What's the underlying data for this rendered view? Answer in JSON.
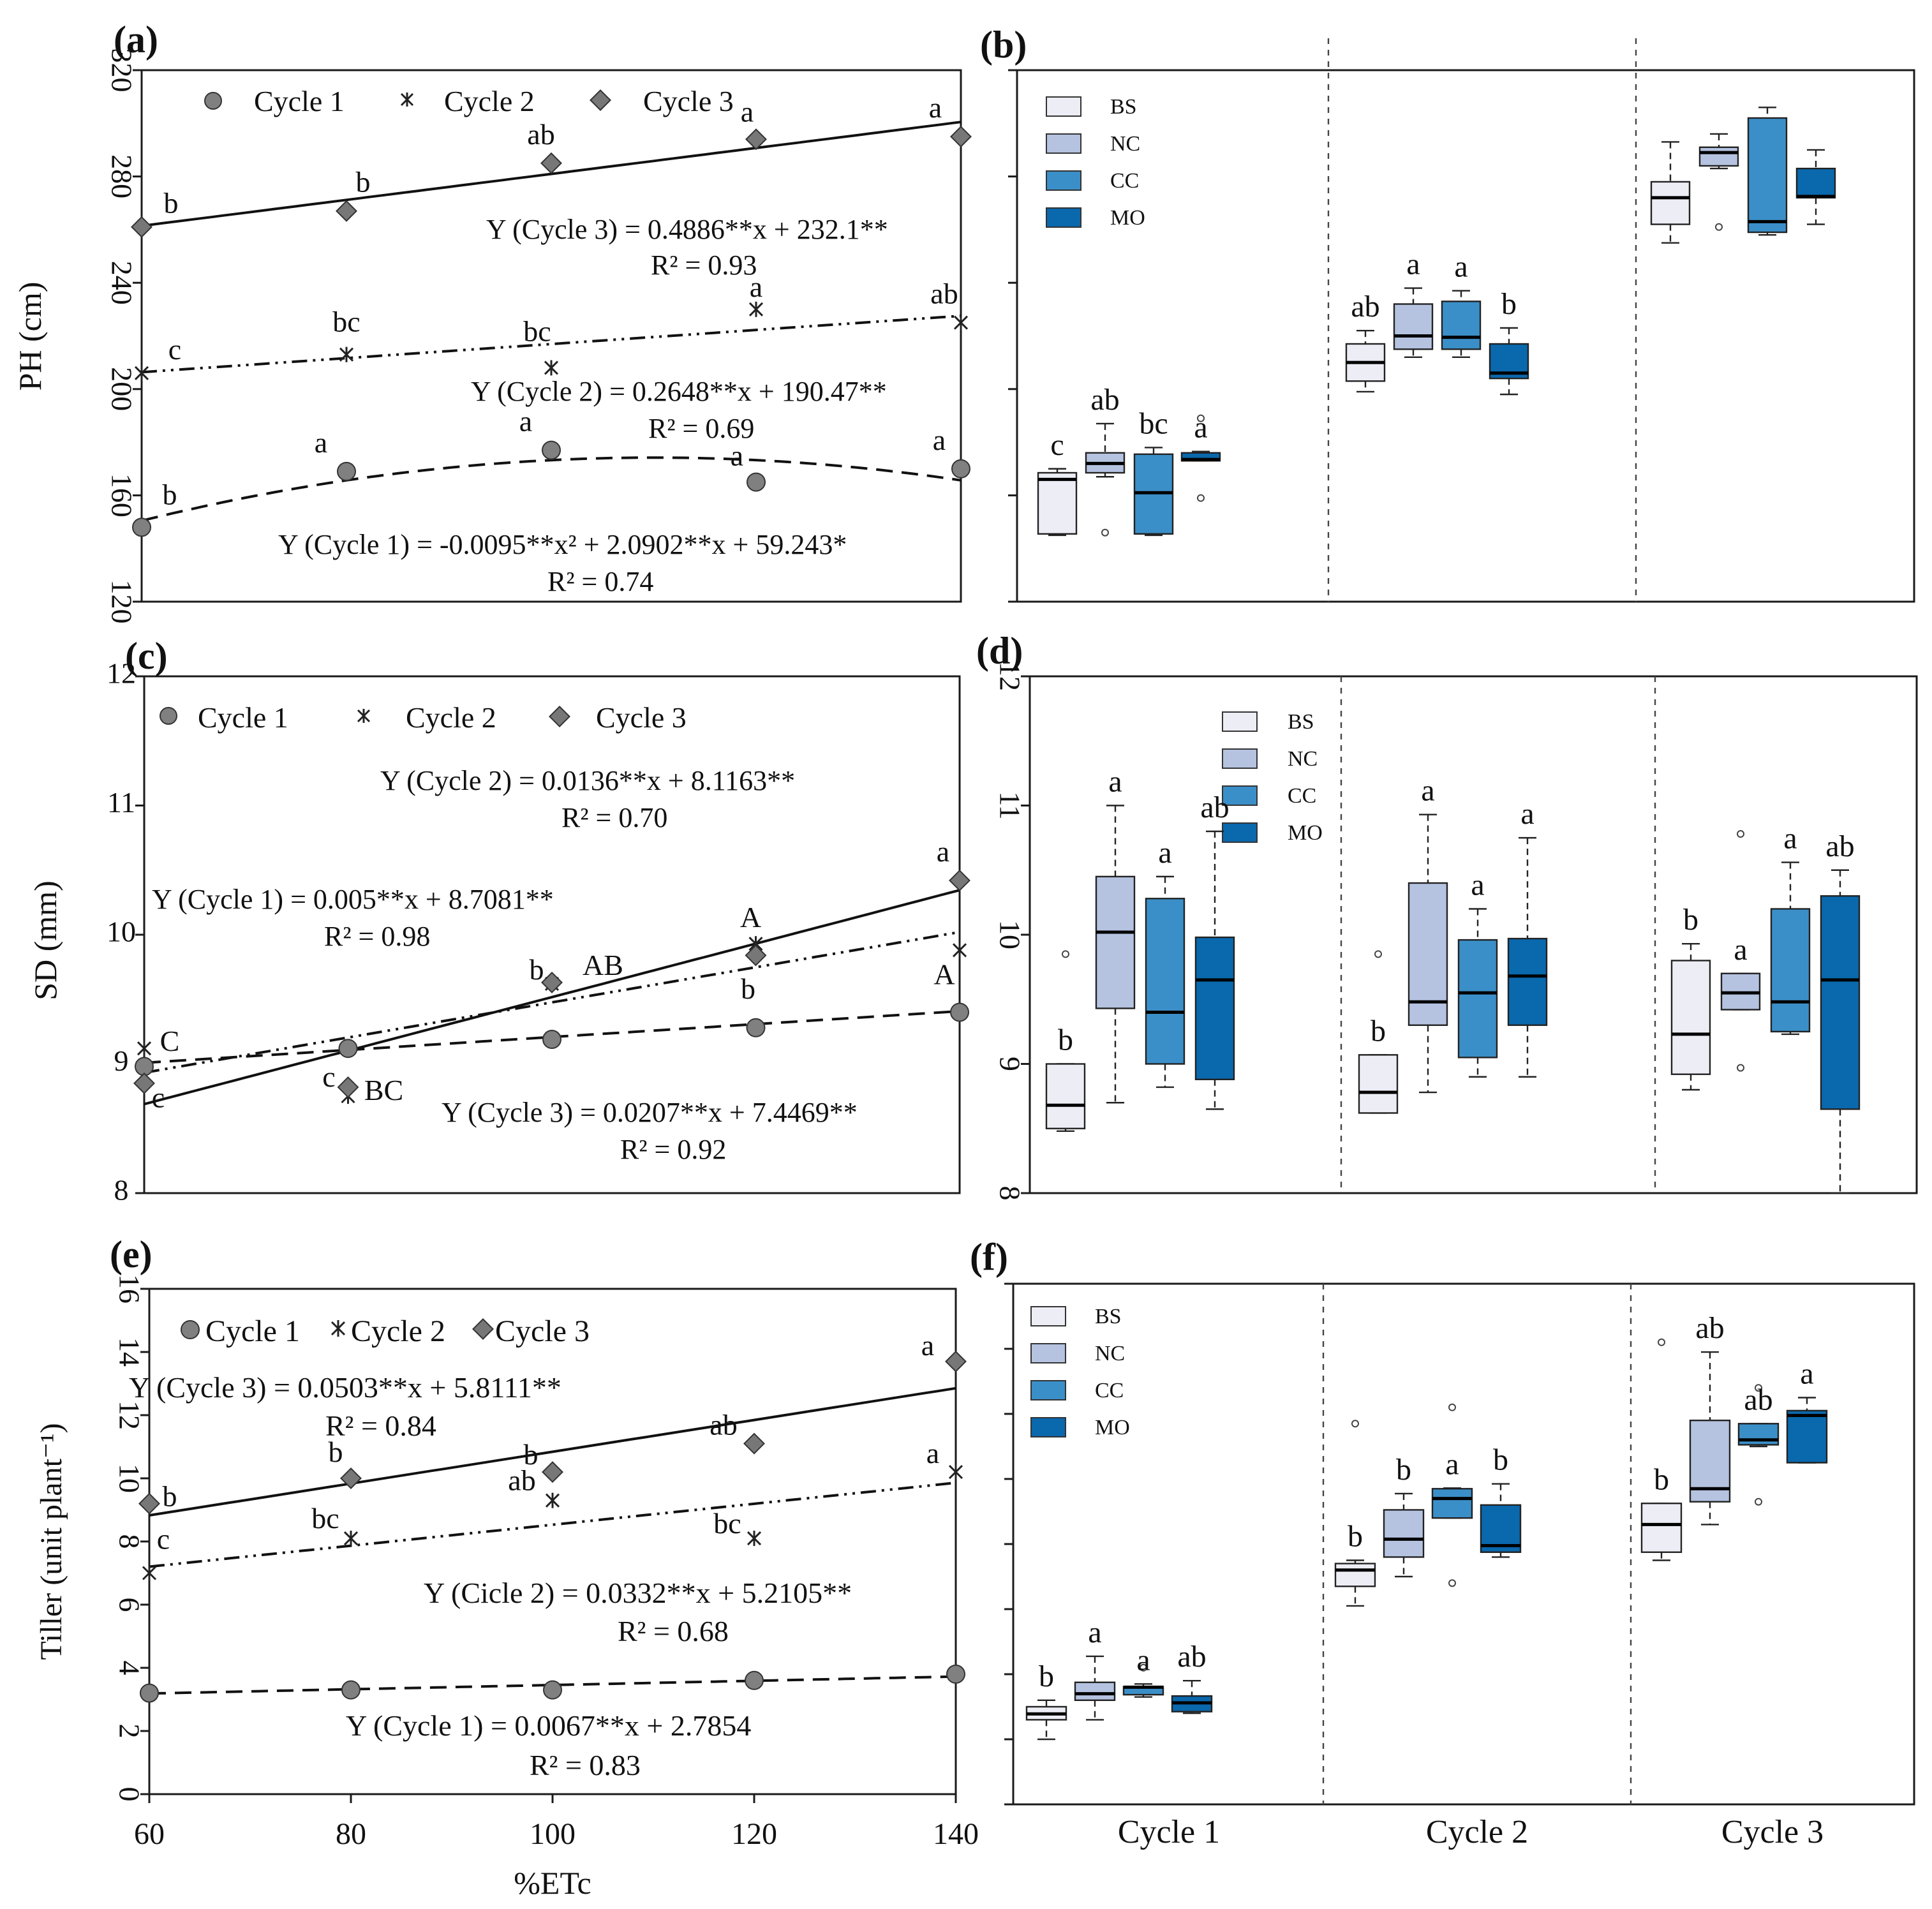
{
  "colors": {
    "BS": "#ededf6",
    "NC": "#b5c3e1",
    "CC": "#3b8fc8",
    "MO": "#0a68ad",
    "marker": "#808080",
    "cycle3_marker": "#777777"
  },
  "chart_data": [
    {
      "panel": "a",
      "type": "scatter",
      "panel_label": "(a)",
      "ylabel": "PH (cm)",
      "xlabel": "",
      "ylim": [
        120,
        320
      ],
      "yticks": [
        "120",
        "160",
        "200",
        "240",
        "280",
        "320"
      ],
      "x": [
        60,
        80,
        100,
        120,
        140
      ],
      "legend": [
        "Cycle 1",
        "Cycle 2",
        "Cycle 3"
      ],
      "legend_position": "top",
      "series": [
        {
          "name": "Cycle 1",
          "marker": "circle",
          "values": [
            148,
            169,
            177,
            165,
            170
          ],
          "letters": [
            "b",
            "a",
            "a",
            "a",
            "a"
          ],
          "fit": {
            "kind": "quadratic",
            "coef": [
              -0.0095,
              2.0902,
              59.243
            ],
            "style": "dashed"
          }
        },
        {
          "name": "Cycle 2",
          "marker": "asterisk",
          "values": [
            206,
            213,
            208,
            230,
            225
          ],
          "letters": [
            "c",
            "bc",
            "bc",
            "a",
            "ab"
          ],
          "fit": {
            "kind": "linear",
            "coef": [
              0.2648,
              190.47
            ],
            "style": "dashdotdot"
          }
        },
        {
          "name": "Cycle 3",
          "marker": "diamond",
          "values": [
            261,
            267,
            285,
            294,
            295
          ],
          "letters": [
            "b",
            "b",
            "ab",
            "a",
            "a"
          ],
          "fit": {
            "kind": "linear",
            "coef": [
              0.4886,
              232.1
            ],
            "style": "solid"
          }
        }
      ],
      "equations": [
        {
          "eq": "Y (Cycle 3) = 0.4886**x + 232.1**",
          "r2": "R² = 0.93"
        },
        {
          "eq": "Y (Cycle 2) = 0.2648**x + 190.47**",
          "r2": "R² = 0.69"
        },
        {
          "eq": "Y (Cycle 1) = -0.0095**x² + 2.0902**x + 59.243*",
          "r2": "R² = 0.74"
        }
      ]
    },
    {
      "panel": "b",
      "type": "box",
      "panel_label": "(b)",
      "ylim": [
        120,
        320
      ],
      "categories": [
        "Cycle 1",
        "Cycle 2",
        "Cycle 3"
      ],
      "legend": [
        "BS",
        "NC",
        "CC",
        "MO"
      ],
      "legend_position": "top-left",
      "groups": [
        {
          "category": "Cycle 1",
          "boxes": [
            {
              "name": "BS",
              "min": 145,
              "q1": 145.5,
              "median": 166,
              "q3": 168.5,
              "max": 170,
              "outliers": [],
              "letter": "c"
            },
            {
              "name": "NC",
              "min": 167,
              "q1": 168.5,
              "median": 172,
              "q3": 176,
              "max": 187,
              "outliers": [
                146
              ],
              "letter": "ab"
            },
            {
              "name": "CC",
              "min": 145,
              "q1": 145.5,
              "median": 161,
              "q3": 175.5,
              "max": 178,
              "outliers": [],
              "letter": "bc"
            },
            {
              "name": "MO",
              "min": 173,
              "q1": 173,
              "median": 173.5,
              "q3": 176,
              "max": 176.5,
              "outliers": [
                189,
                159
              ],
              "letter": "a"
            }
          ]
        },
        {
          "category": "Cycle 2",
          "boxes": [
            {
              "name": "BS",
              "min": 199,
              "q1": 203,
              "median": 210,
              "q3": 217,
              "max": 222,
              "outliers": [],
              "letter": "ab"
            },
            {
              "name": "NC",
              "min": 212,
              "q1": 215,
              "median": 220,
              "q3": 232,
              "max": 238,
              "outliers": [],
              "letter": "a"
            },
            {
              "name": "CC",
              "min": 212,
              "q1": 215,
              "median": 219.5,
              "q3": 233,
              "max": 237,
              "outliers": [],
              "letter": "a"
            },
            {
              "name": "MO",
              "min": 198,
              "q1": 204,
              "median": 206,
              "q3": 217,
              "max": 223,
              "outliers": [],
              "letter": "b"
            }
          ]
        },
        {
          "category": "Cycle 3",
          "boxes": [
            {
              "name": "BS",
              "min": 255,
              "q1": 262,
              "median": 272,
              "q3": 278,
              "max": 293,
              "outliers": [],
              "letter": ""
            },
            {
              "name": "NC",
              "min": 283,
              "q1": 284,
              "median": 289,
              "q3": 291,
              "max": 296,
              "outliers": [
                261
              ],
              "letter": ""
            },
            {
              "name": "CC",
              "min": 258,
              "q1": 259,
              "median": 263,
              "q3": 302,
              "max": 306,
              "outliers": [],
              "letter": ""
            },
            {
              "name": "MO",
              "min": 262,
              "q1": 272,
              "median": 272.5,
              "q3": 283,
              "max": 290,
              "outliers": [],
              "letter": ""
            }
          ]
        }
      ]
    },
    {
      "panel": "c",
      "type": "scatter",
      "panel_label": "(c)",
      "ylabel": "SD (mm)",
      "xlabel": "",
      "ylim": [
        8,
        12
      ],
      "yticks": [
        "8",
        "9",
        "10",
        "11",
        "12"
      ],
      "x": [
        60,
        80,
        100,
        120,
        140
      ],
      "legend": [
        "Cycle 1",
        "Cycle 2",
        "Cycle 3"
      ],
      "legend_position": "top",
      "series": [
        {
          "name": "Cycle 1",
          "marker": "circle",
          "values": [
            8.98,
            9.12,
            9.19,
            9.28,
            9.4
          ],
          "letters": [
            "c",
            "c",
            "b",
            "b",
            "A"
          ],
          "fit": {
            "kind": "linear",
            "coef": [
              0.005,
              8.7081
            ],
            "style": "dashed"
          }
        },
        {
          "name": "Cycle 2",
          "marker": "asterisk",
          "values": [
            9.12,
            8.75,
            9.62,
            9.93,
            9.88
          ],
          "letters": [
            "C",
            "BC",
            "AB",
            "A",
            ""
          ],
          "fit": {
            "kind": "linear",
            "coef": [
              0.0136,
              8.1163
            ],
            "style": "dashdotdot"
          }
        },
        {
          "name": "Cycle 3",
          "marker": "diamond",
          "values": [
            8.85,
            8.82,
            9.63,
            9.84,
            10.42
          ],
          "letters": [
            "",
            "",
            "",
            "",
            "a"
          ],
          "fit": {
            "kind": "linear",
            "coef": [
              0.0207,
              7.4469
            ],
            "style": "solid"
          }
        }
      ],
      "equations": [
        {
          "eq": "Y (Cycle 2) = 0.0136**x + 8.1163**",
          "r2": "R² = 0.70"
        },
        {
          "eq": "Y (Cycle 1) = 0.005**x + 8.7081**",
          "r2": "R² = 0.98"
        },
        {
          "eq": "Y (Cycle 3) = 0.0207**x + 7.4469**",
          "r2": "R² = 0.92"
        }
      ]
    },
    {
      "panel": "d",
      "type": "box",
      "panel_label": "(d)",
      "ylim": [
        8,
        12
      ],
      "yticks": [
        "8",
        "9",
        "10",
        "11",
        "12"
      ],
      "categories": [
        "Cycle 1",
        "Cycle 2",
        "Cycle 3"
      ],
      "legend": [
        "BS",
        "NC",
        "CC",
        "MO"
      ],
      "legend_position": "top",
      "groups": [
        {
          "category": "Cycle 1",
          "boxes": [
            {
              "name": "BS",
              "min": 8.48,
              "q1": 8.5,
              "median": 8.68,
              "q3": 9.0,
              "max": 9.0,
              "outliers": [
                9.85
              ],
              "letter": "b"
            },
            {
              "name": "NC",
              "min": 8.7,
              "q1": 9.43,
              "median": 10.02,
              "q3": 10.45,
              "max": 11.0,
              "outliers": [],
              "letter": "a"
            },
            {
              "name": "CC",
              "min": 8.82,
              "q1": 9.0,
              "median": 9.4,
              "q3": 10.28,
              "max": 10.45,
              "outliers": [],
              "letter": "a"
            },
            {
              "name": "MO",
              "min": 8.65,
              "q1": 8.88,
              "median": 9.65,
              "q3": 9.98,
              "max": 10.8,
              "outliers": [],
              "letter": "ab"
            }
          ]
        },
        {
          "category": "Cycle 2",
          "boxes": [
            {
              "name": "BS",
              "min": 8.62,
              "q1": 8.62,
              "median": 8.78,
              "q3": 9.07,
              "max": 9.07,
              "outliers": [
                9.85
              ],
              "letter": "b"
            },
            {
              "name": "NC",
              "min": 8.78,
              "q1": 9.3,
              "median": 9.48,
              "q3": 10.4,
              "max": 10.93,
              "outliers": [],
              "letter": "a"
            },
            {
              "name": "CC",
              "min": 8.9,
              "q1": 9.05,
              "median": 9.55,
              "q3": 9.96,
              "max": 10.2,
              "outliers": [],
              "letter": "a"
            },
            {
              "name": "MO",
              "min": 8.9,
              "q1": 9.3,
              "median": 9.68,
              "q3": 9.97,
              "max": 10.75,
              "outliers": [],
              "letter": "a"
            }
          ]
        },
        {
          "category": "Cycle 3",
          "boxes": [
            {
              "name": "BS",
              "min": 8.8,
              "q1": 8.92,
              "median": 9.23,
              "q3": 9.8,
              "max": 9.93,
              "outliers": [],
              "letter": "b"
            },
            {
              "name": "NC",
              "min": 9.42,
              "q1": 9.42,
              "median": 9.55,
              "q3": 9.7,
              "max": 9.7,
              "outliers": [
                10.78,
                8.97
              ],
              "letter": "a"
            },
            {
              "name": "CC",
              "min": 9.23,
              "q1": 9.25,
              "median": 9.48,
              "q3": 10.2,
              "max": 10.56,
              "outliers": [],
              "letter": "a"
            },
            {
              "name": "MO",
              "min": 8.0,
              "q1": 8.65,
              "median": 9.65,
              "q3": 10.3,
              "max": 10.5,
              "outliers": [],
              "letter": "ab"
            }
          ]
        }
      ]
    },
    {
      "panel": "e",
      "type": "scatter",
      "panel_label": "(e)",
      "ylabel": "Tiller (unit plant⁻¹)",
      "xlabel": "%ETc",
      "ylim": [
        0,
        16
      ],
      "yticks": [
        "0",
        "2",
        "4",
        "6",
        "8",
        "10",
        "12",
        "14",
        "16"
      ],
      "x": [
        60,
        80,
        100,
        120,
        140
      ],
      "xticks": [
        "60",
        "80",
        "100",
        "120",
        "140"
      ],
      "legend": [
        "Cycle 1",
        "Cycle 2",
        "Cycle 3"
      ],
      "legend_position": "top-left",
      "series": [
        {
          "name": "Cycle 1",
          "marker": "circle",
          "values": [
            3.2,
            3.3,
            3.3,
            3.6,
            3.8
          ],
          "letters": [
            "",
            "",
            "",
            "",
            ""
          ],
          "fit": {
            "kind": "linear",
            "coef": [
              0.0067,
              2.7854
            ],
            "style": "dashed"
          }
        },
        {
          "name": "Cycle 2",
          "marker": "asterisk",
          "values": [
            7.0,
            8.1,
            9.3,
            8.1,
            10.2
          ],
          "letters": [
            "c",
            "bc",
            "ab",
            "bc",
            "a"
          ],
          "fit": {
            "kind": "linear",
            "coef": [
              0.0332,
              5.2105
            ],
            "style": "dashdotdot"
          }
        },
        {
          "name": "Cycle 3",
          "marker": "diamond",
          "values": [
            9.2,
            10.0,
            10.2,
            11.1,
            13.7
          ],
          "letters": [
            "b",
            "b",
            "b",
            "ab",
            "a"
          ],
          "fit": {
            "kind": "linear",
            "coef": [
              0.0503,
              5.8111
            ],
            "style": "solid"
          }
        }
      ],
      "equations": [
        {
          "eq": "Y (Cycle 3) = 0.0503**x + 5.8111**",
          "r2": "R² = 0.84"
        },
        {
          "eq": "Y (Cicle 2) = 0.0332**x + 5.2105**",
          "r2": "R² = 0.68"
        },
        {
          "eq": "Y (Cycle 1) = 0.0067**x + 2.7854",
          "r2": "R² = 0.83"
        }
      ]
    },
    {
      "panel": "f",
      "type": "box",
      "panel_label": "(f)",
      "ylim": [
        0,
        16
      ],
      "categories": [
        "Cycle 1",
        "Cycle 2",
        "Cycle 3"
      ],
      "legend": [
        "BS",
        "NC",
        "CC",
        "MO"
      ],
      "legend_position": "top-left",
      "groups": [
        {
          "category": "Cycle 1",
          "boxes": [
            {
              "name": "BS",
              "min": 2.0,
              "q1": 2.6,
              "median": 2.78,
              "q3": 3.0,
              "max": 3.2,
              "outliers": [],
              "letter": "b"
            },
            {
              "name": "NC",
              "min": 2.6,
              "q1": 3.2,
              "median": 3.4,
              "q3": 3.75,
              "max": 4.55,
              "outliers": [],
              "letter": "a"
            },
            {
              "name": "CC",
              "min": 3.3,
              "q1": 3.37,
              "median": 3.6,
              "q3": 3.62,
              "max": 3.7,
              "outliers": [
                4.2
              ],
              "letter": "a"
            },
            {
              "name": "MO",
              "min": 2.8,
              "q1": 2.85,
              "median": 3.12,
              "q3": 3.33,
              "max": 3.8,
              "outliers": [],
              "letter": "ab"
            }
          ]
        },
        {
          "category": "Cycle 2",
          "boxes": [
            {
              "name": "BS",
              "min": 6.1,
              "q1": 6.7,
              "median": 7.2,
              "q3": 7.4,
              "max": 7.5,
              "outliers": [
                11.7
              ],
              "letter": "b"
            },
            {
              "name": "NC",
              "min": 7.0,
              "q1": 7.6,
              "median": 8.15,
              "q3": 9.05,
              "max": 9.55,
              "outliers": [],
              "letter": "b"
            },
            {
              "name": "CC",
              "min": 8.8,
              "q1": 8.8,
              "median": 9.4,
              "q3": 9.7,
              "max": 9.72,
              "outliers": [
                12.2,
                6.8
              ],
              "letter": "a"
            },
            {
              "name": "MO",
              "min": 7.6,
              "q1": 7.75,
              "median": 7.95,
              "q3": 9.2,
              "max": 9.85,
              "outliers": [],
              "letter": "b"
            }
          ]
        },
        {
          "category": "Cycle 3",
          "boxes": [
            {
              "name": "BS",
              "min": 7.5,
              "q1": 7.75,
              "median": 8.6,
              "q3": 9.25,
              "max": 9.25,
              "outliers": [
                14.2
              ],
              "letter": "b"
            },
            {
              "name": "NC",
              "min": 8.6,
              "q1": 9.3,
              "median": 9.7,
              "q3": 11.8,
              "max": 13.9,
              "outliers": [],
              "letter": "ab"
            },
            {
              "name": "CC",
              "min": 11.0,
              "q1": 11.05,
              "median": 11.2,
              "q3": 11.7,
              "max": 11.7,
              "outliers": [
                12.8,
                9.3
              ],
              "letter": "ab"
            },
            {
              "name": "MO",
              "min": 10.5,
              "q1": 10.5,
              "median": 11.95,
              "q3": 12.1,
              "max": 12.5,
              "outliers": [],
              "letter": "a"
            }
          ]
        }
      ]
    }
  ]
}
